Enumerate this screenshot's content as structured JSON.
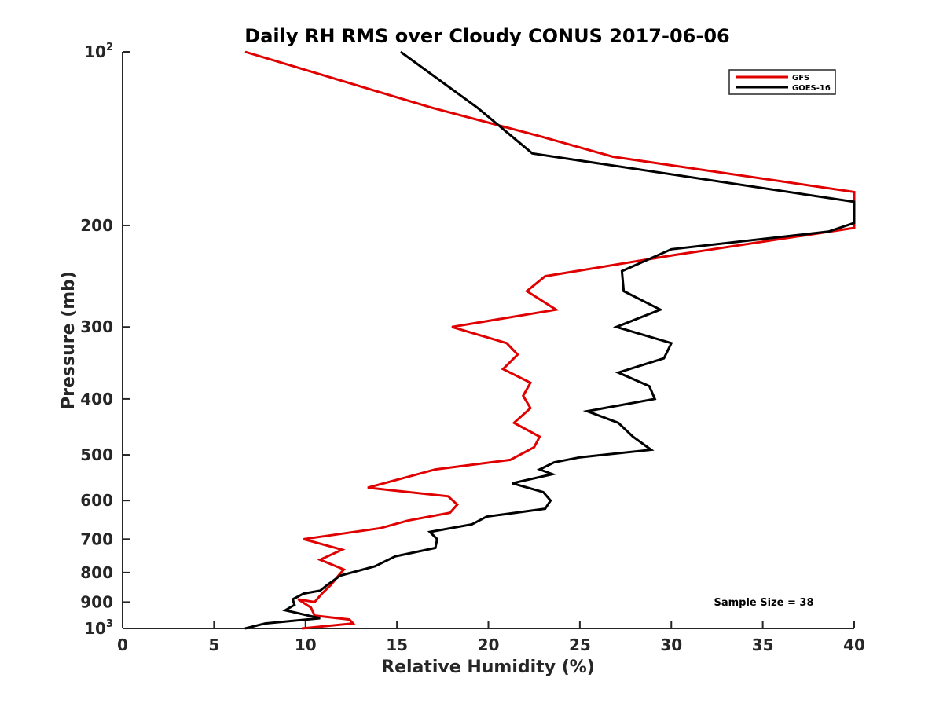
{
  "chart_data": {
    "type": "line",
    "title": "Daily RH RMS over Cloudy CONUS 2017-06-06",
    "xlabel": "Relative Humidity (%)",
    "ylabel": "Pressure (mb)",
    "xlim": [
      0,
      40
    ],
    "ylim": [
      1000,
      100
    ],
    "y_scale": "log",
    "y_reversed": true,
    "grid": false,
    "legend_position": "top-right",
    "x_ticks": [
      0,
      5,
      10,
      15,
      20,
      25,
      30,
      35,
      40
    ],
    "y_ticks": [
      {
        "value": 100,
        "base": "10",
        "exp": "2",
        "label": ""
      },
      {
        "value": 200,
        "label": "200"
      },
      {
        "value": 300,
        "label": "300"
      },
      {
        "value": 400,
        "label": "400"
      },
      {
        "value": 500,
        "label": "500"
      },
      {
        "value": 600,
        "label": "600"
      },
      {
        "value": 700,
        "label": "700"
      },
      {
        "value": 800,
        "label": "800"
      },
      {
        "value": 900,
        "label": "900"
      },
      {
        "value": 1000,
        "base": "10",
        "exp": "3",
        "label": ""
      }
    ],
    "series": [
      {
        "name": "GFS",
        "color": "#e00000",
        "x": [
          6.7,
          16.9,
          22.8,
          26.8,
          40.0,
          40.0,
          30.2,
          23.1,
          22.1,
          23.7,
          18.0,
          21.0,
          21.6,
          20.8,
          22.3,
          21.9,
          22.3,
          21.4,
          22.8,
          22.5,
          21.2,
          17.1,
          13.4,
          17.8,
          18.3,
          17.9,
          15.6,
          14.1,
          9.9,
          12.0,
          10.8,
          12.1,
          11.8,
          11.4,
          10.9,
          10.5,
          9.6,
          10.3,
          10.5,
          12.4,
          12.6,
          9.8
        ],
        "y": [
          100,
          125,
          140,
          152,
          175,
          202,
          225,
          245,
          260,
          280,
          300,
          320,
          335,
          355,
          375,
          395,
          415,
          440,
          465,
          485,
          510,
          530,
          570,
          590,
          610,
          630,
          650,
          670,
          700,
          730,
          760,
          790,
          810,
          840,
          870,
          900,
          890,
          920,
          950,
          965,
          980,
          1000
        ]
      },
      {
        "name": "GOES-16",
        "color": "#000000",
        "x": [
          15.2,
          19.4,
          22.4,
          40.0,
          40.0,
          38.6,
          30.0,
          27.3,
          27.4,
          29.4,
          27.0,
          30.0,
          29.6,
          27.1,
          28.8,
          29.1,
          25.4,
          27.1,
          27.9,
          28.9,
          25.0,
          23.6,
          22.8,
          23.5,
          21.3,
          23.0,
          23.4,
          23.1,
          19.9,
          19.1,
          16.8,
          17.2,
          17.1,
          14.9,
          13.8,
          11.9,
          11.2,
          10.8,
          9.9,
          9.3,
          9.4,
          8.9,
          10.8,
          7.8,
          6.7
        ],
        "y": [
          100,
          125,
          150,
          182,
          198,
          205,
          220,
          240,
          260,
          280,
          300,
          320,
          340,
          360,
          380,
          400,
          420,
          440,
          465,
          490,
          505,
          515,
          530,
          540,
          560,
          580,
          600,
          620,
          640,
          660,
          680,
          700,
          725,
          750,
          780,
          810,
          840,
          860,
          870,
          890,
          910,
          930,
          960,
          980,
          1000
        ]
      }
    ],
    "annotations": [
      {
        "text": "Sample Size = 38"
      }
    ]
  }
}
